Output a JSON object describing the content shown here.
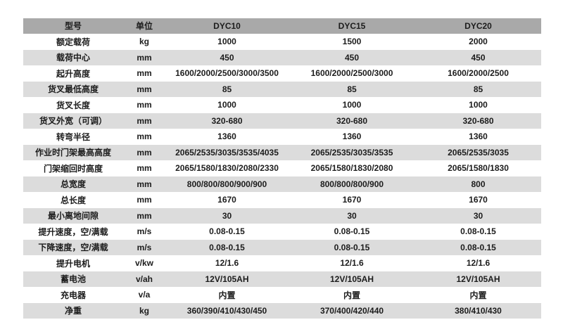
{
  "colors": {
    "header_bg": "#a9a9a9",
    "row_alt_bg": "#dcdcdc",
    "row_bg": "#ffffff",
    "text": "#1c1c1c"
  },
  "table": {
    "columns": [
      "型号",
      "单位",
      "DYC10",
      "DYC15",
      "DYC20"
    ],
    "rows": [
      [
        "额定载荷",
        "kg",
        "1000",
        "1500",
        "2000"
      ],
      [
        "载荷中心",
        "mm",
        "450",
        "450",
        "450"
      ],
      [
        "起升高度",
        "mm",
        "1600/2000/2500/3000/3500",
        "1600/2000/2500/3000",
        "1600/2000/2500"
      ],
      [
        "货叉最低高度",
        "mm",
        "85",
        "85",
        "85"
      ],
      [
        "货叉长度",
        "mm",
        "1000",
        "1000",
        "1000"
      ],
      [
        "货叉外宽（可调）",
        "mm",
        "320-680",
        "320-680",
        "320-680"
      ],
      [
        "转弯半径",
        "mm",
        "1360",
        "1360",
        "1360"
      ],
      [
        "作业时门架最高高度",
        "mm",
        "2065/2535/3035/3535/4035",
        "2065/2535/3035/3535",
        "2065/2535/3035"
      ],
      [
        "门架缩回时高度",
        "mm",
        "2065/1580/1830/2080/2330",
        "2065/1580/1830/2080",
        "2065/1580/1830"
      ],
      [
        "总宽度",
        "mm",
        "800/800/800/900/900",
        "800/800/800/900",
        "800"
      ],
      [
        "总长度",
        "mm",
        "1670",
        "1670",
        "1670"
      ],
      [
        "最小离地间隙",
        "mm",
        "30",
        "30",
        "30"
      ],
      [
        "提升速度，空/满载",
        "m/s",
        "0.08-0.15",
        "0.08-0.15",
        "0.08-0.15"
      ],
      [
        "下降速度，空/满载",
        "m/s",
        "0.08-0.15",
        "0.08-0.15",
        "0.08-0.15"
      ],
      [
        "提升电机",
        "v/kw",
        "12/1.6",
        "12/1.6",
        "12/1.6"
      ],
      [
        "蓄电池",
        "v/ah",
        "12V/105AH",
        "12V/105AH",
        "12V/105AH"
      ],
      [
        "充电器",
        "v/a",
        "内置",
        "内置",
        "内置"
      ],
      [
        "净重",
        "kg",
        "360/390/410/430/450",
        "370/400/420/440",
        "380/410/430"
      ]
    ]
  }
}
